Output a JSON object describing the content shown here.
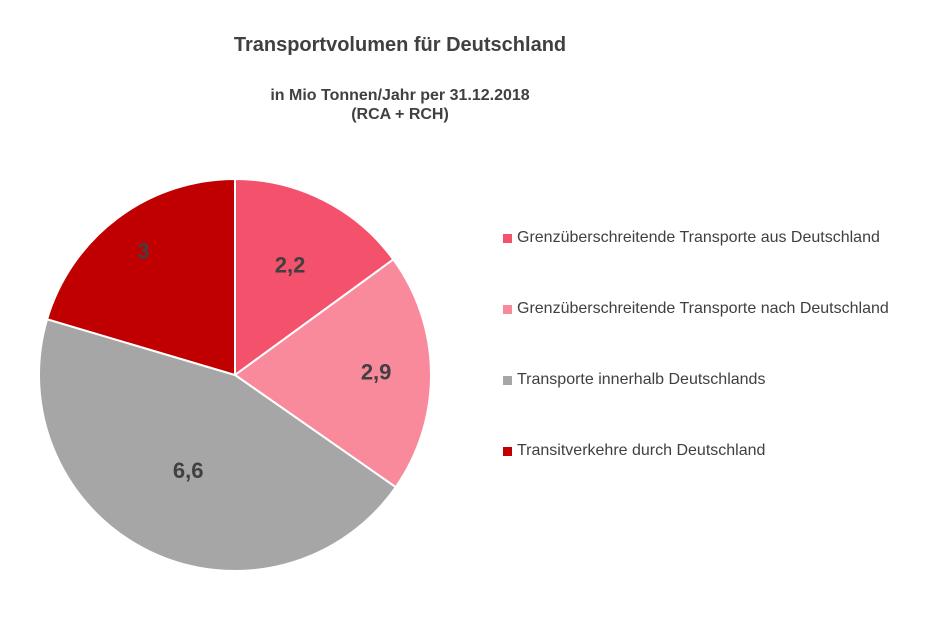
{
  "chart_data": {
    "type": "pie",
    "title": "Transportvolumen für Deutschland",
    "subtitle_lines": [
      "in Mio Tonnen/Jahr per 31.12.2018",
      "(RCA + RCH)"
    ],
    "slices": [
      {
        "name": "Grenzüberschreitende Transporte aus Deutschland",
        "value": 2.2,
        "label": "2,2",
        "color": "#f4516c"
      },
      {
        "name": "Grenzüberschreitende Transporte nach Deutschland",
        "value": 2.9,
        "label": "2,9",
        "color": "#f98a9c"
      },
      {
        "name": "Transporte innerhalb Deutschlands",
        "value": 6.6,
        "label": "6,6",
        "color": "#a6a6a6"
      },
      {
        "name": "Transitverkehre durch Deutschland",
        "value": 3.0,
        "label": "3",
        "color": "#c00000"
      }
    ],
    "start_angle_deg": 0,
    "direction": "clockwise",
    "legend_position": "right",
    "slice_border_color": "#ffffff"
  }
}
